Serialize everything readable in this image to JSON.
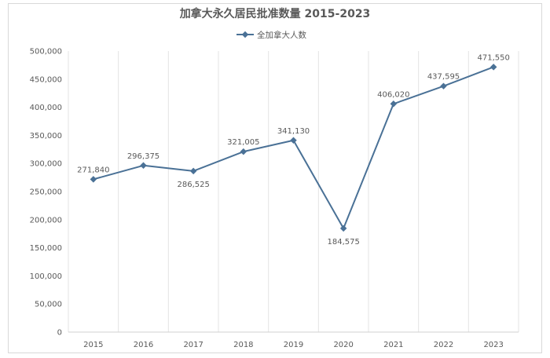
{
  "chart_data": {
    "type": "line",
    "title": "加拿大永久居民批准数量 2015-2023",
    "xlabel": "",
    "ylabel": "",
    "ylim": [
      0,
      500000
    ],
    "y_ticks": [
      "0",
      "50,000",
      "100,000",
      "150,000",
      "200,000",
      "250,000",
      "300,000",
      "350,000",
      "400,000",
      "450,000",
      "500,000"
    ],
    "categories": [
      "2015",
      "2016",
      "2017",
      "2018",
      "2019",
      "2020",
      "2021",
      "2022",
      "2023"
    ],
    "grid": "vertical",
    "legend_position": "top",
    "series": [
      {
        "name": "全加拿大人数",
        "color": "#4a7196",
        "values": [
          271840,
          296375,
          286525,
          321005,
          341130,
          184575,
          406020,
          437595,
          471550
        ],
        "labels": [
          "271,840",
          "296,375",
          "286,525",
          "321,005",
          "341,130",
          "184,575",
          "406,020",
          "437,595",
          "471,550"
        ]
      }
    ]
  }
}
